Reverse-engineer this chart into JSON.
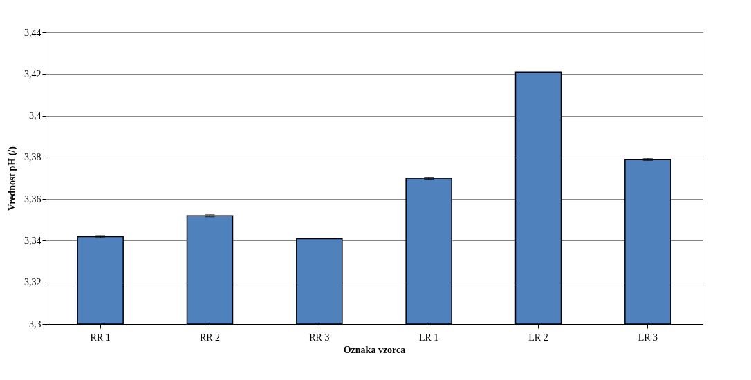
{
  "chart_data": {
    "type": "bar",
    "xlabel": "Oznaka vzorca",
    "ylabel": "Vrednost pH (/)",
    "categories": [
      "RR 1",
      "RR 2",
      "RR 3",
      "LR 1",
      "LR 2",
      "LR 3"
    ],
    "values": [
      3.342,
      3.352,
      3.341,
      3.37,
      3.421,
      3.379
    ],
    "errors": [
      0.0005,
      0.0005,
      null,
      0.0005,
      null,
      0.0005
    ],
    "color": "#4f81bd",
    "ylim": [
      3.3,
      3.44
    ],
    "yticks": [
      {
        "value": 3.3,
        "label": "3,3"
      },
      {
        "value": 3.32,
        "label": "3,32"
      },
      {
        "value": 3.34,
        "label": "3,34"
      },
      {
        "value": 3.36,
        "label": "3,36"
      },
      {
        "value": 3.38,
        "label": "3,38"
      },
      {
        "value": 3.4,
        "label": "3,4"
      },
      {
        "value": 3.42,
        "label": "3,42"
      },
      {
        "value": 3.44,
        "label": "3,44"
      }
    ],
    "grid": "y"
  }
}
